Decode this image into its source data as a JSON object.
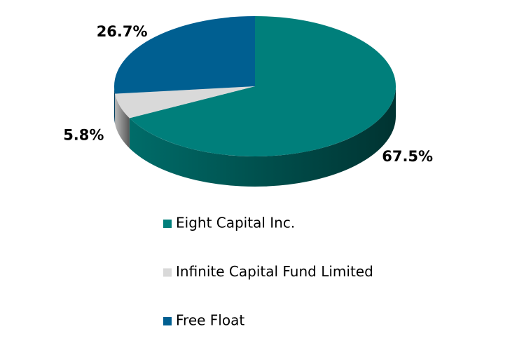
{
  "chart_data": {
    "type": "pie",
    "categories": [
      "Eight Capital Inc.",
      "Infinite Capital Fund Limited",
      "Free Float"
    ],
    "values": [
      67.5,
      5.8,
      26.7
    ],
    "value_labels": [
      "67.5%",
      "5.8%",
      "26.7%"
    ],
    "colors": [
      "#007f7b",
      "#d9d9d9",
      "#005f91"
    ],
    "legend": "bottom"
  }
}
